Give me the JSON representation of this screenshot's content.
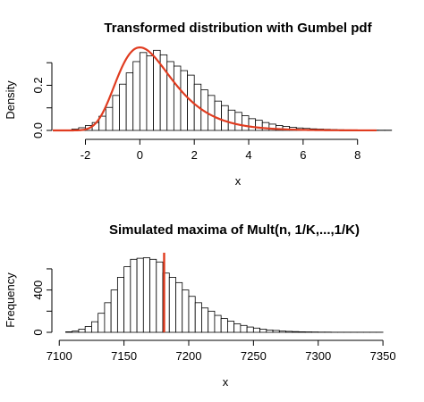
{
  "chart_data": [
    {
      "type": "bar",
      "title": "Transformed distribution with Gumbel pdf",
      "xlabel": "x",
      "ylabel": "Density",
      "xlim": [
        -3.2,
        8.7
      ],
      "ylim": [
        0,
        0.38
      ],
      "x_ticks": [
        -2,
        0,
        2,
        4,
        6,
        8
      ],
      "y_ticks": [
        0.0,
        0.2
      ],
      "bin_width": 0.25,
      "bin_start": -2.75,
      "values": [
        0.002,
        0.006,
        0.012,
        0.022,
        0.035,
        0.063,
        0.102,
        0.155,
        0.205,
        0.255,
        0.305,
        0.345,
        0.33,
        0.355,
        0.335,
        0.305,
        0.285,
        0.265,
        0.245,
        0.205,
        0.18,
        0.155,
        0.13,
        0.11,
        0.09,
        0.08,
        0.065,
        0.052,
        0.045,
        0.035,
        0.028,
        0.022,
        0.018,
        0.014,
        0.011,
        0.009,
        0.007,
        0.006,
        0.005,
        0.004,
        0.003,
        0.0025,
        0.002,
        0.0015,
        0.001,
        0.001,
        0.001,
        0.001
      ],
      "overlay": {
        "name": "",
        "type": "gumbel-pdf",
        "location": 0,
        "scale": 1,
        "color": "#e03c20"
      }
    },
    {
      "type": "bar",
      "title": "Simulated maxima of Mult(n, 1/K,...,1/K)",
      "xlabel": "x",
      "ylabel": "Frequency",
      "xlim": [
        7095,
        7352
      ],
      "ylim": [
        0,
        760
      ],
      "x_ticks": [
        7100,
        7150,
        7200,
        7250,
        7300,
        7350
      ],
      "y_ticks": [
        0,
        400
      ],
      "bin_width": 5,
      "bin_start": 7105,
      "values": [
        5,
        12,
        30,
        55,
        100,
        180,
        280,
        400,
        520,
        620,
        690,
        700,
        705,
        690,
        665,
        560,
        520,
        470,
        400,
        340,
        280,
        230,
        200,
        160,
        130,
        105,
        80,
        65,
        50,
        40,
        30,
        22,
        18,
        12,
        9,
        7,
        5,
        4,
        3,
        2,
        2,
        1,
        1,
        1,
        1,
        1,
        1,
        1,
        1
      ],
      "vline": {
        "x": 7181,
        "color": "#e03c20"
      }
    }
  ]
}
